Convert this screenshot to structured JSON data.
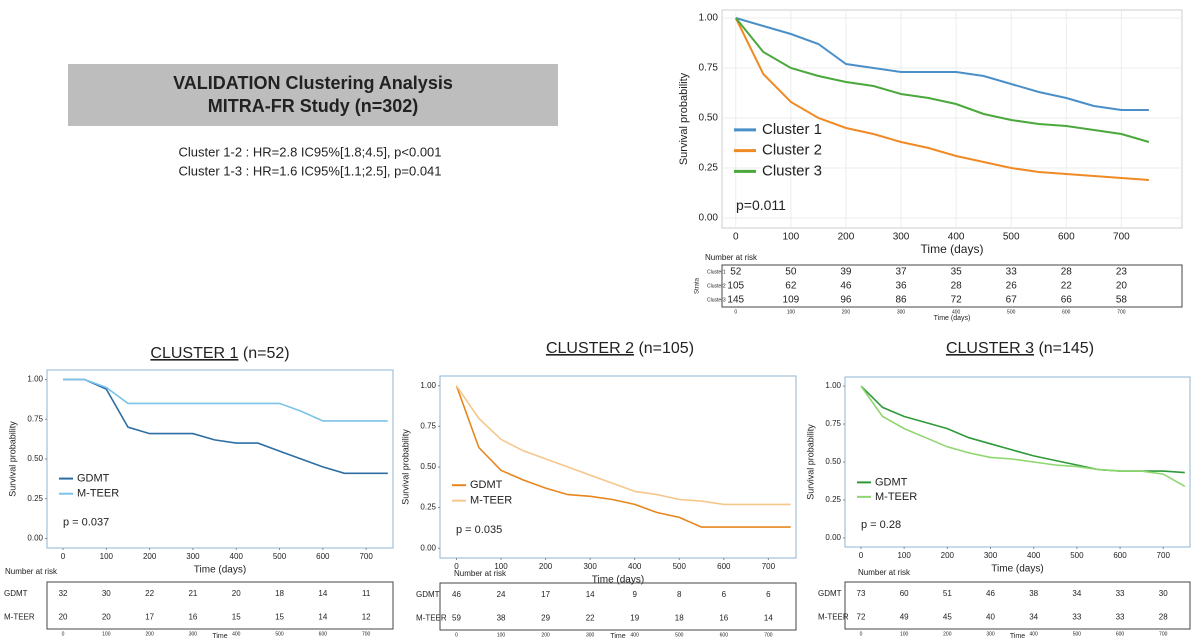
{
  "header": {
    "title": [
      "VALIDATION Clustering Analysis",
      "MITRA-FR Study (n=302)"
    ],
    "stats": [
      "Cluster 1-2 : HR=2.8 IC95%[1.8;4.5], p<0.001",
      "Cluster 1-3 : HR=1.6 IC95%[1.1;2.5], p=0.041"
    ]
  },
  "chart_data": [
    {
      "type": "line",
      "xlabel": "Time (days)",
      "ylabel": "Survival probability",
      "x": [
        0,
        50,
        100,
        150,
        200,
        250,
        300,
        350,
        400,
        450,
        500,
        550,
        600,
        650,
        700,
        750
      ],
      "series": [
        {
          "name": "Cluster 1",
          "color": "#4a8fc8",
          "values": [
            1.0,
            0.96,
            0.92,
            0.87,
            0.77,
            0.75,
            0.73,
            0.73,
            0.73,
            0.71,
            0.67,
            0.63,
            0.6,
            0.56,
            0.54,
            0.54
          ]
        },
        {
          "name": "Cluster 2",
          "color": "#f08a24",
          "values": [
            1.0,
            0.72,
            0.58,
            0.5,
            0.45,
            0.42,
            0.38,
            0.35,
            0.31,
            0.28,
            0.25,
            0.23,
            0.22,
            0.21,
            0.2,
            0.19
          ]
        },
        {
          "name": "Cluster 3",
          "color": "#4aa83c",
          "values": [
            1.0,
            0.83,
            0.75,
            0.71,
            0.68,
            0.66,
            0.62,
            0.6,
            0.57,
            0.52,
            0.49,
            0.47,
            0.46,
            0.44,
            0.42,
            0.38
          ]
        }
      ],
      "xlim": [
        -25,
        810
      ],
      "ylim": [
        -0.05,
        1.04
      ],
      "xticks": [
        0,
        100,
        200,
        300,
        400,
        500,
        600,
        700
      ],
      "yticks": [
        {
          "value": 0,
          "label": "0.00"
        },
        {
          "value": 0.25,
          "label": "0.25"
        },
        {
          "value": 0.5,
          "label": "0.50"
        },
        {
          "value": 0.75,
          "label": "0.75"
        },
        {
          "value": 1,
          "label": "1.00"
        }
      ],
      "grid": true,
      "legend_position": "center left",
      "annotation": "p=0.011",
      "risk_table": {
        "title": "Number at risk",
        "strata_label": "Strata",
        "xlabel": "Time (days)",
        "xticks": [
          0,
          100,
          200,
          300,
          400,
          500,
          600,
          700
        ],
        "rows": [
          {
            "name": "Cluster1",
            "values": [
              52,
              50,
              39,
              37,
              35,
              33,
              28,
              23
            ]
          },
          {
            "name": "Cluster2",
            "values": [
              105,
              62,
              46,
              36,
              28,
              26,
              22,
              20
            ]
          },
          {
            "name": "Cluster3",
            "values": [
              145,
              109,
              96,
              86,
              72,
              67,
              66,
              58
            ]
          }
        ]
      }
    },
    {
      "type": "line",
      "title": "CLUSTER 1",
      "subtitle": "(n=52)",
      "xlabel": "Time (days)",
      "ylabel": "Survival probability",
      "x": [
        0,
        50,
        100,
        150,
        200,
        250,
        300,
        350,
        400,
        450,
        500,
        550,
        600,
        650,
        700,
        750
      ],
      "series": [
        {
          "name": "GDMT",
          "color": "#2c6ea3",
          "values": [
            1.0,
            1.0,
            0.94,
            0.7,
            0.66,
            0.66,
            0.66,
            0.62,
            0.6,
            0.6,
            0.55,
            0.5,
            0.45,
            0.41,
            0.41,
            0.41
          ]
        },
        {
          "name": "M-TEER",
          "color": "#7cc3e8",
          "values": [
            1.0,
            1.0,
            0.95,
            0.85,
            0.85,
            0.85,
            0.85,
            0.85,
            0.85,
            0.85,
            0.85,
            0.8,
            0.74,
            0.74,
            0.74,
            0.74
          ]
        }
      ],
      "xlim": [
        -37,
        762
      ],
      "ylim": [
        -0.06,
        1.06
      ],
      "xticks": [
        0,
        100,
        200,
        300,
        400,
        500,
        600,
        700
      ],
      "yticks": [
        {
          "value": 0,
          "label": "0.00"
        },
        {
          "value": 0.25,
          "label": "0.25"
        },
        {
          "value": 0.5,
          "label": "0.50"
        },
        {
          "value": 0.75,
          "label": "0.75"
        },
        {
          "value": 1,
          "label": "1.00"
        }
      ],
      "grid": false,
      "legend_position": "lower left",
      "annotation": "p = 0.037",
      "risk_table": {
        "title": "Number at risk",
        "xlabel": "Time",
        "xticks": [
          0,
          100,
          200,
          300,
          400,
          500,
          600,
          700
        ],
        "rows": [
          {
            "name": "GDMT",
            "values": [
              32,
              30,
              22,
              21,
              20,
              18,
              14,
              11
            ]
          },
          {
            "name": "M-TEER",
            "values": [
              20,
              20,
              17,
              16,
              15,
              15,
              14,
              12
            ]
          }
        ]
      }
    },
    {
      "type": "line",
      "title": "CLUSTER 2",
      "subtitle": "(n=105)",
      "xlabel": "Time (days)",
      "ylabel": "Survival probability",
      "x": [
        0,
        50,
        100,
        150,
        200,
        250,
        300,
        350,
        400,
        450,
        500,
        550,
        600,
        650,
        700,
        750
      ],
      "series": [
        {
          "name": "GDMT",
          "color": "#e8861e",
          "values": [
            1.0,
            0.62,
            0.48,
            0.42,
            0.37,
            0.33,
            0.32,
            0.3,
            0.27,
            0.22,
            0.19,
            0.13,
            0.13,
            0.13,
            0.13,
            0.13
          ]
        },
        {
          "name": "M-TEER",
          "color": "#f6c68a",
          "values": [
            1.0,
            0.8,
            0.67,
            0.6,
            0.55,
            0.5,
            0.45,
            0.4,
            0.35,
            0.33,
            0.3,
            0.29,
            0.27,
            0.27,
            0.27,
            0.27
          ]
        }
      ],
      "xlim": [
        -37,
        762
      ],
      "ylim": [
        -0.06,
        1.06
      ],
      "xticks": [
        0,
        100,
        200,
        300,
        400,
        500,
        600,
        700
      ],
      "yticks": [
        {
          "value": 0,
          "label": "0.00"
        },
        {
          "value": 0.25,
          "label": "0.25"
        },
        {
          "value": 0.5,
          "label": "0.50"
        },
        {
          "value": 0.75,
          "label": "0.75"
        },
        {
          "value": 1,
          "label": "1.00"
        }
      ],
      "grid": false,
      "legend_position": "lower left",
      "annotation": "p = 0.035",
      "risk_table": {
        "title": "Number at risk",
        "xlabel": "Time",
        "xticks": [
          0,
          100,
          200,
          300,
          400,
          500,
          600,
          700
        ],
        "rows": [
          {
            "name": "GDMT",
            "values": [
              46,
              24,
              17,
              14,
              9,
              8,
              6,
              6
            ]
          },
          {
            "name": "M-TEER",
            "values": [
              59,
              38,
              29,
              22,
              19,
              18,
              16,
              14
            ]
          }
        ]
      }
    },
    {
      "type": "line",
      "title": "CLUSTER 3",
      "subtitle": "(n=145)",
      "xlabel": "Time (days)",
      "ylabel": "Survival probability",
      "x": [
        0,
        50,
        100,
        150,
        200,
        250,
        300,
        350,
        400,
        450,
        500,
        550,
        600,
        650,
        700,
        750
      ],
      "series": [
        {
          "name": "GDMT",
          "color": "#2e9a3a",
          "values": [
            1.0,
            0.86,
            0.8,
            0.76,
            0.72,
            0.66,
            0.62,
            0.58,
            0.54,
            0.51,
            0.48,
            0.45,
            0.44,
            0.44,
            0.44,
            0.43
          ]
        },
        {
          "name": "M-TEER",
          "color": "#8fd66f",
          "values": [
            1.0,
            0.8,
            0.72,
            0.66,
            0.6,
            0.56,
            0.53,
            0.52,
            0.5,
            0.48,
            0.47,
            0.45,
            0.44,
            0.44,
            0.42,
            0.34
          ]
        }
      ],
      "xlim": [
        -37,
        762
      ],
      "ylim": [
        -0.06,
        1.06
      ],
      "xticks": [
        0,
        100,
        200,
        300,
        400,
        500,
        600,
        700
      ],
      "yticks": [
        {
          "value": 0,
          "label": "0.00"
        },
        {
          "value": 0.25,
          "label": "0.25"
        },
        {
          "value": 0.5,
          "label": "0.50"
        },
        {
          "value": 0.75,
          "label": "0.75"
        },
        {
          "value": 1,
          "label": "1.00"
        }
      ],
      "grid": false,
      "legend_position": "lower left",
      "annotation": "p = 0.28",
      "risk_table": {
        "title": "Number at risk",
        "xlabel": "Time",
        "xticks": [
          0,
          100,
          200,
          300,
          400,
          500,
          600,
          700
        ],
        "rows": [
          {
            "name": "GDMT",
            "values": [
              73,
              60,
              51,
              46,
              38,
              34,
              33,
              30
            ]
          },
          {
            "name": "M-TEER",
            "values": [
              72,
              49,
              45,
              40,
              34,
              33,
              33,
              28
            ]
          }
        ]
      }
    }
  ]
}
